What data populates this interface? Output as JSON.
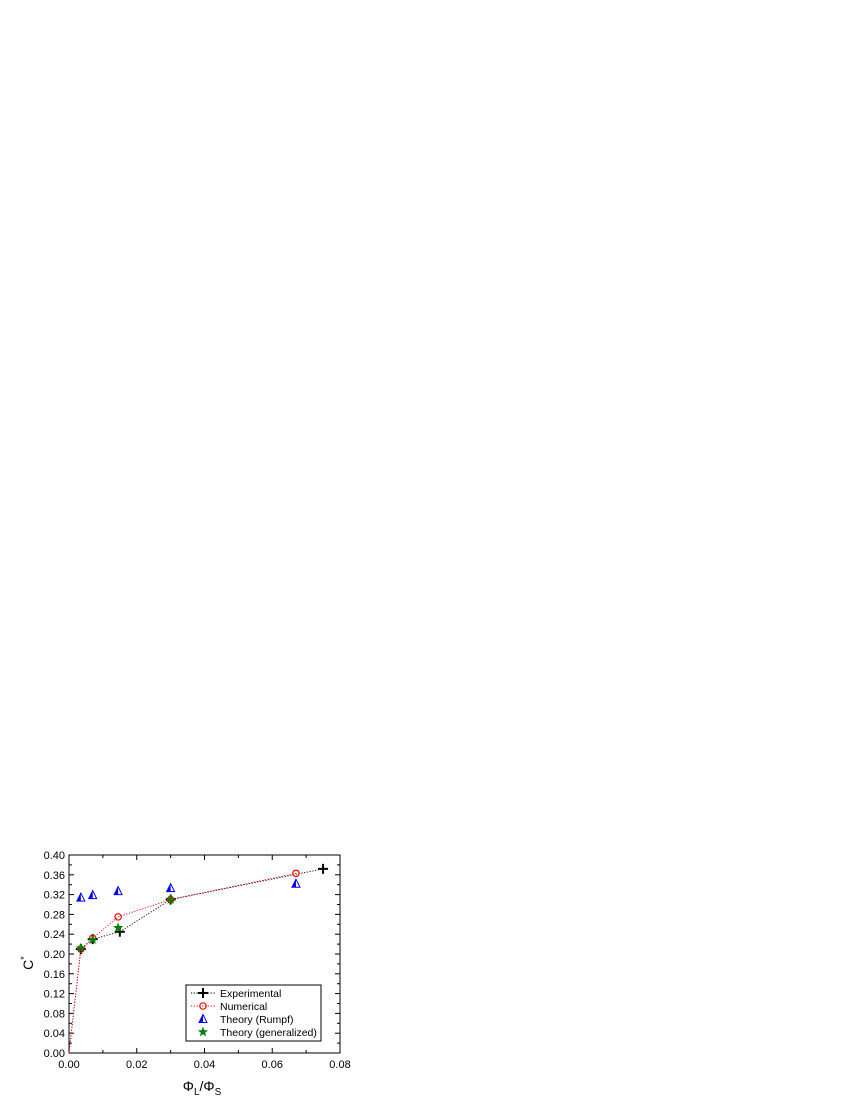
{
  "chart_data": {
    "type": "scatter",
    "xlabel": "Φ_L/Φ_S",
    "ylabel": "C*",
    "xlim": [
      0.0,
      0.08
    ],
    "ylim": [
      0.0,
      0.4
    ],
    "x_ticks": [
      "0.00",
      "0.02",
      "0.04",
      "0.06",
      "0.08"
    ],
    "y_ticks": [
      "0.00",
      "0.04",
      "0.08",
      "0.12",
      "0.16",
      "0.20",
      "0.24",
      "0.28",
      "0.32",
      "0.36",
      "0.40"
    ],
    "legend_position": "bottom-right",
    "series": [
      {
        "name": "Experimental",
        "marker": "cross",
        "color": "#000000",
        "line": "dotted",
        "points": [
          [
            0.0,
            0.0
          ],
          [
            0.0035,
            0.21
          ],
          [
            0.007,
            0.23
          ],
          [
            0.015,
            0.245
          ],
          [
            0.03,
            0.31
          ],
          [
            0.075,
            0.372
          ]
        ]
      },
      {
        "name": "Numerical",
        "marker": "open-circle",
        "color": "#ff0000",
        "line": "dotted",
        "points": [
          [
            0.0,
            0.0
          ],
          [
            0.0035,
            0.21
          ],
          [
            0.007,
            0.232
          ],
          [
            0.0145,
            0.275
          ],
          [
            0.03,
            0.31
          ],
          [
            0.067,
            0.363
          ]
        ]
      },
      {
        "name": "Theory (Rumpf)",
        "marker": "triangle",
        "color": "#0000ff",
        "line": "none",
        "points": [
          [
            0.0035,
            0.314
          ],
          [
            0.007,
            0.319
          ],
          [
            0.0145,
            0.327
          ],
          [
            0.03,
            0.333
          ],
          [
            0.067,
            0.342
          ]
        ]
      },
      {
        "name": "Theory (generalized)",
        "marker": "star",
        "color": "#008000",
        "line": "none",
        "points": [
          [
            0.0035,
            0.212
          ],
          [
            0.007,
            0.229
          ],
          [
            0.0145,
            0.253
          ],
          [
            0.03,
            0.31
          ]
        ]
      }
    ]
  }
}
